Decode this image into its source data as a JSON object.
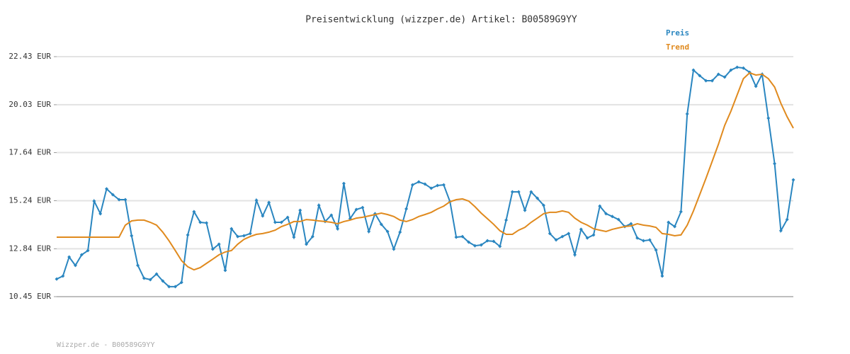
{
  "chart_data": {
    "type": "line",
    "title": "Preisentwicklung (wizzper.de) Artikel: B00589G9YY",
    "footer": "Wizzper.de - B00589G9YY",
    "categories": [
      null,
      null,
      null,
      null,
      null,
      null,
      null,
      null,
      null,
      null,
      null,
      null,
      null,
      null,
      null,
      null,
      null,
      null,
      null,
      null,
      null,
      null,
      null,
      null,
      null,
      null,
      null,
      null,
      null,
      null,
      null,
      null,
      null,
      null,
      null,
      null,
      null,
      null,
      null,
      null,
      null,
      null,
      null,
      null,
      null,
      null,
      null,
      null,
      null,
      null,
      null,
      null,
      null,
      null,
      null,
      null,
      null,
      null,
      null,
      null,
      null,
      null,
      null,
      null,
      null,
      null,
      null,
      null,
      null,
      null,
      null,
      null,
      null,
      null,
      null,
      null,
      null,
      null,
      null,
      null,
      null,
      null,
      null,
      null,
      null,
      null,
      null,
      null,
      null,
      null,
      null,
      null,
      null,
      null,
      null,
      null,
      null,
      null,
      null,
      null,
      null,
      null,
      null,
      null,
      null,
      null,
      null,
      null,
      null,
      null,
      null,
      null,
      null,
      null,
      null,
      null,
      null,
      null,
      null
    ],
    "series": [
      {
        "name": "Preis",
        "color": "#2a86c0",
        "markers": true,
        "values": [
          11.33,
          11.48,
          12.43,
          12.01,
          12.54,
          12.75,
          15.22,
          14.59,
          15.83,
          15.54,
          15.29,
          15.29,
          13.49,
          12.01,
          11.37,
          11.3,
          11.58,
          11.23,
          10.95,
          10.95,
          11.16,
          13.53,
          14.69,
          14.16,
          14.13,
          12.82,
          13.07,
          11.76,
          13.84,
          13.45,
          13.49,
          13.6,
          15.26,
          14.48,
          15.15,
          14.16,
          14.16,
          14.41,
          13.42,
          14.76,
          13.07,
          13.45,
          15.01,
          14.2,
          14.52,
          13.84,
          16.1,
          14.34,
          14.8,
          14.9,
          13.7,
          14.59,
          14.06,
          13.7,
          12.82,
          13.67,
          14.83,
          16.03,
          16.18,
          16.07,
          15.86,
          16.0,
          16.03,
          15.19,
          13.42,
          13.45,
          13.17,
          12.99,
          13.03,
          13.24,
          13.21,
          12.96,
          14.27,
          15.68,
          15.68,
          14.76,
          15.68,
          15.36,
          15.01,
          13.6,
          13.28,
          13.45,
          13.6,
          12.54,
          13.81,
          13.38,
          13.53,
          14.97,
          14.59,
          14.45,
          14.3,
          13.95,
          14.09,
          13.38,
          13.24,
          13.28,
          12.78,
          11.48,
          14.16,
          13.95,
          14.69,
          19.57,
          21.76,
          21.48,
          21.23,
          21.23,
          21.55,
          21.41,
          21.76,
          21.9,
          21.86,
          21.65,
          20.95,
          21.55,
          19.36,
          17.09,
          13.74,
          14.3,
          16.28
        ]
      },
      {
        "name": "Trend",
        "color": "#e08a1e",
        "markers": false,
        "values": [
          13.42,
          13.42,
          13.42,
          13.42,
          13.42,
          13.42,
          13.42,
          13.42,
          13.42,
          13.42,
          13.42,
          14.02,
          14.23,
          14.27,
          14.27,
          14.16,
          14.02,
          13.67,
          13.24,
          12.75,
          12.25,
          11.94,
          11.79,
          11.9,
          12.11,
          12.32,
          12.54,
          12.68,
          12.75,
          13.07,
          13.31,
          13.45,
          13.56,
          13.6,
          13.67,
          13.77,
          13.95,
          14.06,
          14.2,
          14.2,
          14.3,
          14.27,
          14.23,
          14.2,
          14.16,
          14.09,
          14.2,
          14.27,
          14.37,
          14.41,
          14.48,
          14.55,
          14.62,
          14.55,
          14.45,
          14.27,
          14.2,
          14.3,
          14.45,
          14.55,
          14.66,
          14.83,
          14.97,
          15.19,
          15.29,
          15.33,
          15.22,
          14.94,
          14.62,
          14.34,
          14.06,
          13.74,
          13.56,
          13.56,
          13.77,
          13.91,
          14.16,
          14.37,
          14.59,
          14.66,
          14.66,
          14.73,
          14.66,
          14.37,
          14.16,
          14.02,
          13.84,
          13.77,
          13.7,
          13.81,
          13.88,
          13.95,
          13.98,
          14.09,
          14.02,
          13.98,
          13.91,
          13.6,
          13.56,
          13.49,
          13.53,
          14.02,
          14.73,
          15.54,
          16.35,
          17.2,
          18.05,
          19.0,
          19.71,
          20.52,
          21.33,
          21.62,
          21.51,
          21.55,
          21.33,
          20.91,
          20.1,
          19.43,
          18.86
        ]
      }
    ],
    "ylim": [
      10.45,
      22.43
    ],
    "yticks": [
      {
        "value": 10.45,
        "label": "10.45 EUR"
      },
      {
        "value": 12.84,
        "label": "12.84 EUR"
      },
      {
        "value": 15.24,
        "label": "15.24 EUR"
      },
      {
        "value": 17.64,
        "label": "17.64 EUR"
      },
      {
        "value": 20.03,
        "label": "20.03 EUR"
      },
      {
        "value": 22.43,
        "label": "22.43 EUR"
      }
    ],
    "grid": true,
    "legend": "top-right"
  }
}
